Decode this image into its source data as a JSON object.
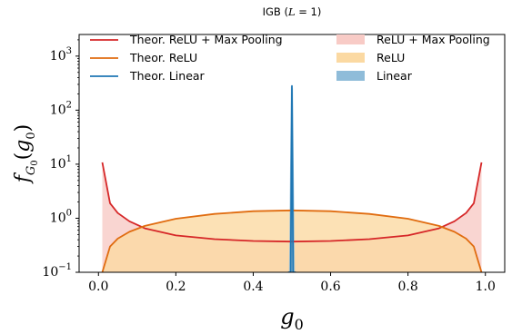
{
  "chart_data": {
    "type": "area",
    "title": "IGB (L = 1)",
    "xlabel": "g0",
    "ylabel": "f_G0(g0)",
    "xlim": [
      -0.05,
      1.05
    ],
    "ylim_log10": [
      -1,
      3.4
    ],
    "yscale": "log",
    "grid": false,
    "legend_placement": "top",
    "x_ticks": [
      "0.0",
      "0.2",
      "0.4",
      "0.6",
      "0.8",
      "1.0"
    ],
    "y_ticks": [
      "10^-1",
      "10^0",
      "10^1",
      "10^2",
      "10^3"
    ],
    "series": [
      {
        "name": "Theor. ReLU + Max Pooling",
        "kind": "line",
        "color": "#d62728",
        "x": [
          0.01,
          0.03,
          0.05,
          0.08,
          0.12,
          0.2,
          0.3,
          0.4,
          0.5,
          0.6,
          0.7,
          0.8,
          0.88,
          0.92,
          0.95,
          0.97,
          0.99
        ],
        "y": [
          10.8,
          1.9,
          1.25,
          0.88,
          0.65,
          0.48,
          0.41,
          0.38,
          0.37,
          0.38,
          0.41,
          0.48,
          0.65,
          0.88,
          1.25,
          1.9,
          10.8
        ]
      },
      {
        "name": "Theor. ReLU",
        "kind": "line",
        "color": "#e06c10",
        "x": [
          0.01,
          0.03,
          0.05,
          0.08,
          0.12,
          0.2,
          0.3,
          0.4,
          0.5,
          0.6,
          0.7,
          0.8,
          0.88,
          0.92,
          0.95,
          0.97,
          0.99
        ],
        "y": [
          0.1,
          0.3,
          0.42,
          0.56,
          0.72,
          0.98,
          1.2,
          1.35,
          1.4,
          1.35,
          1.2,
          0.98,
          0.72,
          0.56,
          0.42,
          0.3,
          0.1
        ]
      },
      {
        "name": "Theor. Linear",
        "kind": "line",
        "color": "#1f77b4",
        "x": [
          0.49,
          0.497,
          0.4985,
          0.5,
          0.5015,
          0.503,
          0.51
        ],
        "y": [
          0.1,
          0.1,
          10,
          280,
          10,
          0.1,
          0.1
        ]
      },
      {
        "name": "ReLU + Max Pooling",
        "kind": "hist",
        "color": "#f8cbc6",
        "x": [
          0.01,
          0.03,
          0.05,
          0.08,
          0.12,
          0.2,
          0.3,
          0.4,
          0.5,
          0.6,
          0.7,
          0.8,
          0.88,
          0.92,
          0.95,
          0.97,
          0.99
        ],
        "y": [
          10.8,
          1.9,
          1.25,
          0.88,
          0.65,
          0.48,
          0.41,
          0.38,
          0.37,
          0.38,
          0.41,
          0.48,
          0.65,
          0.88,
          1.25,
          1.9,
          10.8
        ]
      },
      {
        "name": "ReLU",
        "kind": "hist",
        "color": "#fbd9a2",
        "x": [
          0.01,
          0.03,
          0.05,
          0.08,
          0.12,
          0.2,
          0.3,
          0.4,
          0.5,
          0.6,
          0.7,
          0.8,
          0.88,
          0.92,
          0.95,
          0.97,
          0.99
        ],
        "y": [
          0.1,
          0.3,
          0.42,
          0.56,
          0.72,
          0.98,
          1.2,
          1.35,
          1.4,
          1.35,
          1.2,
          0.98,
          0.72,
          0.56,
          0.42,
          0.3,
          0.1
        ]
      },
      {
        "name": "Linear",
        "kind": "hist",
        "color": "#8fbcd9",
        "x": [
          0.4925,
          0.4975,
          0.5025,
          0.5075
        ],
        "y": [
          0.1,
          280,
          250,
          0.1
        ]
      }
    ]
  }
}
